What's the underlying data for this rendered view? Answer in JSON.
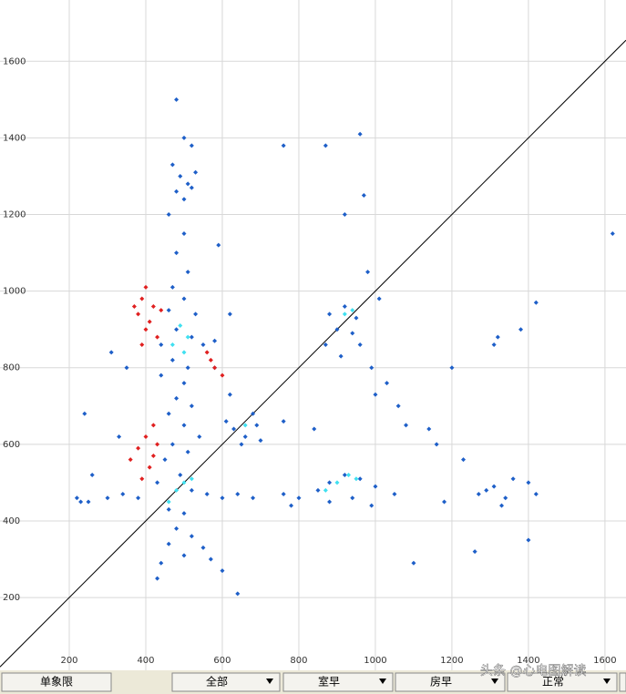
{
  "chart_data": {
    "type": "scatter",
    "xlim": [
      19,
      1655
    ],
    "ylim": [
      10,
      1760
    ],
    "xticks": [
      200,
      400,
      600,
      800,
      1000,
      1200,
      1400,
      1600
    ],
    "yticks": [
      200,
      400,
      600,
      800,
      1000,
      1200,
      1400,
      1600
    ],
    "grid": true,
    "diagonal": true,
    "series": [
      {
        "color": "#1e5fc8",
        "x": [
          480,
          500,
          520,
          470,
          490,
          510,
          530,
          480,
          500,
          520,
          460,
          500,
          480,
          510,
          470,
          500,
          460,
          530,
          480,
          520,
          550,
          440,
          580,
          470,
          510,
          440,
          500,
          480,
          520,
          460,
          500,
          540,
          470,
          510,
          450,
          490,
          430,
          520,
          560,
          600,
          640,
          680,
          380,
          340,
          300,
          250,
          220,
          460,
          500,
          480,
          520,
          460,
          500,
          440,
          550,
          570,
          600,
          430,
          640,
          630,
          660,
          610,
          690,
          650,
          700,
          680,
          620,
          880,
          920,
          950,
          900,
          940,
          870,
          910,
          960,
          960,
          970,
          920,
          870,
          760,
          980,
          1010,
          990,
          1030,
          1060,
          1080,
          1000,
          1140,
          1160,
          1200,
          850,
          880,
          920,
          960,
          1000,
          940,
          880,
          800,
          780,
          760,
          1050,
          990,
          1100,
          1180,
          1270,
          1310,
          1340,
          1290,
          1360,
          1330,
          1400,
          1420,
          1400,
          1260,
          1230,
          1420,
          1380,
          1310,
          1620,
          1320,
          760,
          840,
          350,
          310,
          330,
          240,
          260,
          230,
          590,
          620,
          580
        ],
        "y": [
          1500,
          1400,
          1380,
          1330,
          1300,
          1280,
          1310,
          1260,
          1240,
          1270,
          1200,
          1150,
          1100,
          1050,
          1010,
          980,
          950,
          940,
          900,
          880,
          860,
          860,
          870,
          820,
          800,
          780,
          760,
          720,
          700,
          680,
          650,
          620,
          600,
          580,
          560,
          520,
          500,
          480,
          470,
          460,
          470,
          460,
          460,
          470,
          460,
          450,
          460,
          430,
          420,
          380,
          360,
          340,
          310,
          290,
          330,
          300,
          270,
          250,
          210,
          640,
          620,
          660,
          650,
          600,
          610,
          680,
          730,
          940,
          960,
          930,
          900,
          890,
          860,
          830,
          860,
          1410,
          1250,
          1200,
          1380,
          1380,
          1050,
          980,
          800,
          760,
          700,
          650,
          730,
          640,
          600,
          800,
          480,
          500,
          520,
          510,
          490,
          460,
          450,
          460,
          440,
          470,
          470,
          440,
          290,
          450,
          470,
          490,
          460,
          480,
          510,
          440,
          500,
          470,
          350,
          320,
          560,
          970,
          900,
          860,
          1150,
          880,
          660,
          640,
          800,
          840,
          620,
          680,
          520,
          450,
          1120,
          940,
          800
        ]
      },
      {
        "color": "#e02020",
        "x": [
          400,
          390,
          420,
          380,
          410,
          440,
          400,
          430,
          390,
          370,
          560,
          580,
          600,
          570,
          400,
          380,
          420,
          360,
          410,
          390,
          430,
          420
        ],
        "y": [
          1010,
          980,
          960,
          940,
          920,
          950,
          900,
          880,
          860,
          960,
          840,
          800,
          780,
          820,
          620,
          590,
          570,
          560,
          540,
          510,
          600,
          650
        ]
      },
      {
        "color": "#40e0f0",
        "x": [
          490,
          510,
          470,
          500,
          480,
          460,
          500,
          520,
          870,
          900,
          930,
          950,
          920,
          940,
          660
        ],
        "y": [
          910,
          880,
          860,
          840,
          480,
          450,
          500,
          510,
          480,
          500,
          520,
          510,
          940,
          950,
          650
        ]
      }
    ]
  },
  "buttons": [
    "单象限",
    "全部",
    "室早",
    "房早",
    "正常"
  ],
  "watermark": "头条 @心电图解读"
}
